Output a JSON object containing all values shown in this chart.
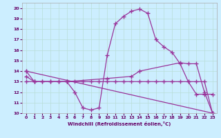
{
  "xlabel": "Windchill (Refroidissement éolien,°C)",
  "bg_color": "#cceeff",
  "line_color": "#993399",
  "xlim": [
    -0.5,
    23.5
  ],
  "ylim": [
    10,
    20.5
  ],
  "xticks": [
    0,
    1,
    2,
    3,
    4,
    5,
    6,
    7,
    8,
    9,
    10,
    11,
    12,
    13,
    14,
    15,
    16,
    17,
    18,
    19,
    20,
    21,
    22,
    23
  ],
  "yticks": [
    10,
    11,
    12,
    13,
    14,
    15,
    16,
    17,
    18,
    19,
    20
  ],
  "series1": {
    "x": [
      0,
      1,
      2,
      3,
      4,
      5,
      6,
      7,
      8,
      9,
      10,
      11,
      12,
      13,
      14,
      15,
      16,
      17,
      18,
      19,
      20,
      21,
      22,
      23
    ],
    "y": [
      14,
      13,
      13,
      13,
      13,
      13,
      12,
      10.5,
      10.3,
      10.5,
      15.5,
      18.5,
      19.2,
      19.7,
      19.9,
      19.5,
      17.0,
      16.3,
      15.8,
      14.7,
      13.0,
      11.8,
      11.8,
      11.8
    ]
  },
  "series2": {
    "x": [
      0,
      1,
      2,
      3,
      4,
      5,
      6,
      7,
      8,
      9,
      10,
      11,
      12,
      13,
      14,
      15,
      16,
      17,
      18,
      19,
      20,
      21,
      22,
      23
    ],
    "y": [
      13,
      13,
      13,
      13,
      13,
      13,
      13,
      13,
      13,
      13,
      13,
      13,
      13,
      13,
      13,
      13,
      13,
      13,
      13,
      13,
      13,
      13,
      13,
      10
    ]
  },
  "series3": {
    "x": [
      0,
      23
    ],
    "y": [
      14,
      10
    ]
  },
  "series4": {
    "x": [
      0,
      1,
      5,
      10,
      13,
      14,
      19,
      20,
      21,
      22,
      23
    ],
    "y": [
      13.5,
      13,
      13,
      13.3,
      13.5,
      14.0,
      14.8,
      14.7,
      14.7,
      12.0,
      10.0
    ]
  }
}
